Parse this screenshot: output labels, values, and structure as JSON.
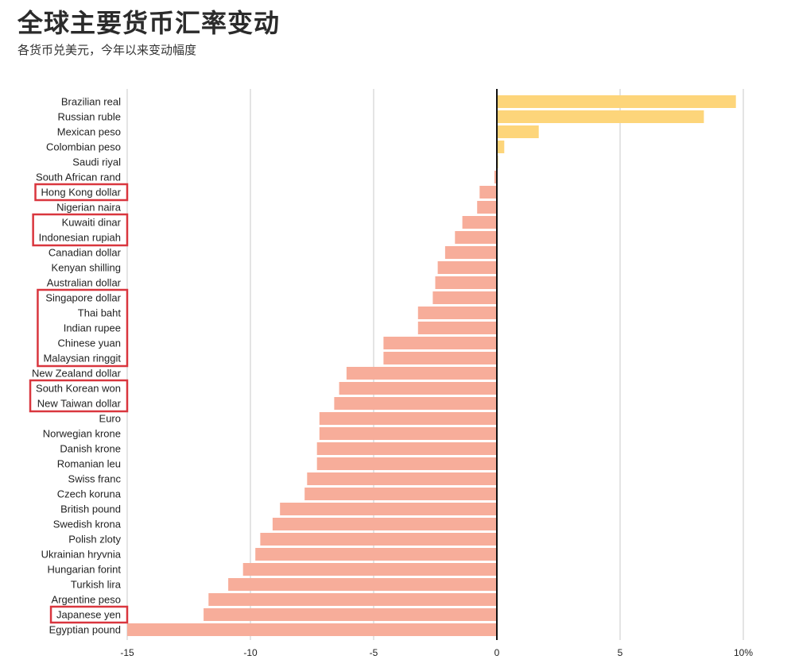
{
  "header": {
    "title": "全球主要货币汇率变动",
    "subtitle": "各货币兑美元，今年以来变动幅度"
  },
  "colors": {
    "positive": "#fdd57a",
    "negative": "#f7ad9a",
    "grid": "#c8c8c8",
    "zero_line": "#111111",
    "highlight_box": "#d9363e"
  },
  "chart_data": {
    "type": "bar",
    "orientation": "horizontal",
    "title": "全球主要货币汇率变动",
    "subtitle": "各货币兑美元，今年以来变动幅度",
    "xlim": [
      -15,
      10
    ],
    "ticks": [
      -15,
      -10,
      -5,
      0,
      5,
      10
    ],
    "tick_labels": [
      "-15",
      "-10",
      "-5",
      "0",
      "5",
      "10%"
    ],
    "grid": true,
    "categories": [
      "Brazilian real",
      "Russian ruble",
      "Mexican peso",
      "Colombian peso",
      "Saudi riyal",
      "South African rand",
      "Hong Kong dollar",
      "Nigerian naira",
      "Kuwaiti dinar",
      "Indonesian rupiah",
      "Canadian dollar",
      "Kenyan shilling",
      "Australian dollar",
      "Singapore dollar",
      "Thai baht",
      "Indian rupee",
      "Chinese yuan",
      "Malaysian ringgit",
      "New Zealand dollar",
      "South Korean won",
      "New Taiwan dollar",
      "Euro",
      "Norwegian krone",
      "Danish krone",
      "Romanian leu",
      "Swiss franc",
      "Czech koruna",
      "British pound",
      "Swedish krona",
      "Polish zloty",
      "Ukrainian hryvnia",
      "Hungarian forint",
      "Turkish lira",
      "Argentine peso",
      "Japanese yen",
      "Egyptian pound"
    ],
    "values": [
      9.7,
      8.4,
      1.7,
      0.3,
      0.05,
      -0.1,
      -0.7,
      -0.8,
      -1.4,
      -1.7,
      -2.1,
      -2.4,
      -2.5,
      -2.6,
      -3.2,
      -3.2,
      -4.6,
      -4.6,
      -6.1,
      -6.4,
      -6.6,
      -7.2,
      -7.2,
      -7.3,
      -7.3,
      -7.7,
      -7.8,
      -8.8,
      -9.1,
      -9.6,
      -9.8,
      -10.3,
      -10.9,
      -11.7,
      -11.9,
      -15.0
    ],
    "highlight_groups": [
      [
        "Hong Kong dollar"
      ],
      [
        "Kuwaiti dinar",
        "Indonesian rupiah"
      ],
      [
        "Singapore dollar",
        "Thai baht",
        "Indian rupee",
        "Chinese yuan",
        "Malaysian ringgit"
      ],
      [
        "South Korean won",
        "New Taiwan dollar"
      ],
      [
        "Japanese yen"
      ]
    ]
  }
}
